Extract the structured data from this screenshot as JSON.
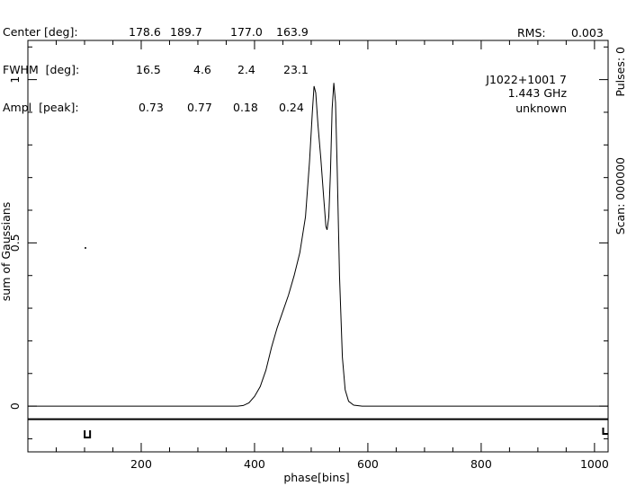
{
  "stats_table": {
    "rows": [
      {
        "label": "Center [deg]:",
        "values": [
          "178.6",
          "189.7",
          "177.0",
          "163.9"
        ]
      },
      {
        "label": "FWHM  [deg]:",
        "values": [
          "16.5",
          "4.6",
          "2.4",
          "23.1"
        ]
      },
      {
        "label": "Ampl  [peak]:",
        "values": [
          "0.73",
          "0.77",
          "0.18",
          "0.24"
        ]
      }
    ],
    "rms_label": "RMS:",
    "rms_value": "0.003"
  },
  "annotations": {
    "source": "J1022+1001 7",
    "frequency": "1.443 GHz",
    "extra": "unknown"
  },
  "right_labels": {
    "pulses": "Pulses: 0",
    "scan": "Scan: 000000"
  },
  "chart_data": {
    "type": "line",
    "title": "",
    "xlabel": "phase[bins]",
    "ylabel": "sum of Gaussians",
    "xlim": [
      0,
      1024
    ],
    "ylim": [
      -0.14,
      1.12
    ],
    "x_ticks": [
      200,
      400,
      600,
      800,
      1000
    ],
    "y_ticks": [
      "0",
      "0.5",
      "1"
    ],
    "grid": false,
    "series": [
      {
        "values": [
          [
            0,
            0.0
          ],
          [
            370,
            0.0
          ],
          [
            380,
            0.002
          ],
          [
            390,
            0.01
          ],
          [
            400,
            0.03
          ],
          [
            410,
            0.06
          ],
          [
            420,
            0.11
          ],
          [
            430,
            0.18
          ],
          [
            440,
            0.24
          ],
          [
            450,
            0.29
          ],
          [
            460,
            0.34
          ],
          [
            470,
            0.4
          ],
          [
            480,
            0.47
          ],
          [
            490,
            0.58
          ],
          [
            497,
            0.75
          ],
          [
            502,
            0.9
          ],
          [
            505,
            0.98
          ],
          [
            508,
            0.96
          ],
          [
            512,
            0.86
          ],
          [
            517,
            0.76
          ],
          [
            522,
            0.64
          ],
          [
            526,
            0.55
          ],
          [
            528,
            0.54
          ],
          [
            531,
            0.58
          ],
          [
            534,
            0.72
          ],
          [
            537,
            0.91
          ],
          [
            540,
            0.99
          ],
          [
            543,
            0.93
          ],
          [
            546,
            0.72
          ],
          [
            550,
            0.4
          ],
          [
            555,
            0.15
          ],
          [
            560,
            0.05
          ],
          [
            566,
            0.015
          ],
          [
            575,
            0.003
          ],
          [
            590,
            0.0
          ],
          [
            1024,
            0.0
          ]
        ]
      }
    ],
    "baseline_marker_x": [
      105,
      1020
    ]
  }
}
